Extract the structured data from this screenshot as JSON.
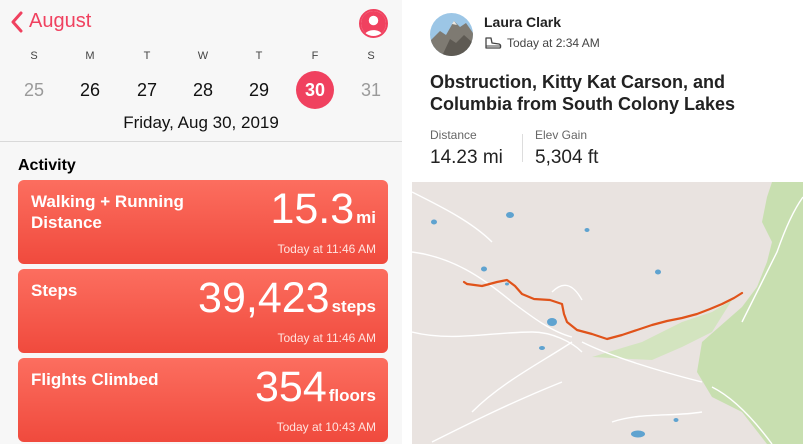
{
  "health": {
    "header": {
      "back_label": "August"
    },
    "weekdays": [
      "S",
      "M",
      "T",
      "W",
      "T",
      "F",
      "S"
    ],
    "days": [
      {
        "num": "25",
        "state": "dim"
      },
      {
        "num": "26",
        "state": ""
      },
      {
        "num": "27",
        "state": ""
      },
      {
        "num": "28",
        "state": ""
      },
      {
        "num": "29",
        "state": ""
      },
      {
        "num": "30",
        "state": "sel"
      },
      {
        "num": "31",
        "state": "dim"
      }
    ],
    "selected_date": "Friday, Aug 30, 2019",
    "section_title": "Activity",
    "cards": [
      {
        "title": "Walking + Running Distance",
        "value": "15.3",
        "unit": "mi",
        "time": "Today at 11:46 AM"
      },
      {
        "title": "Steps",
        "value": "39,423",
        "unit": "steps",
        "time": "Today at 11:46 AM"
      },
      {
        "title": "Flights Climbed",
        "value": "354",
        "unit": "floors",
        "time": "Today at 10:43 AM"
      }
    ],
    "accent_color": "#f0415f",
    "card_color": "#f5523f"
  },
  "strava": {
    "athlete": "Laura Clark",
    "meta": "Today at 2:34 AM",
    "meta_icon": "hiking-boot-icon",
    "title": "Obstruction, Kitty Kat Carson, and Columbia from South Colony Lakes",
    "stats": [
      {
        "label": "Distance",
        "value": "14.23 mi"
      },
      {
        "label": "Elev Gain",
        "value": "5,304 ft"
      }
    ],
    "route_color": "#e0531a",
    "map_land_color": "#e9e3e0",
    "map_forest_color": "#c8dfb0",
    "map_water_color": "#5fa3d0"
  }
}
